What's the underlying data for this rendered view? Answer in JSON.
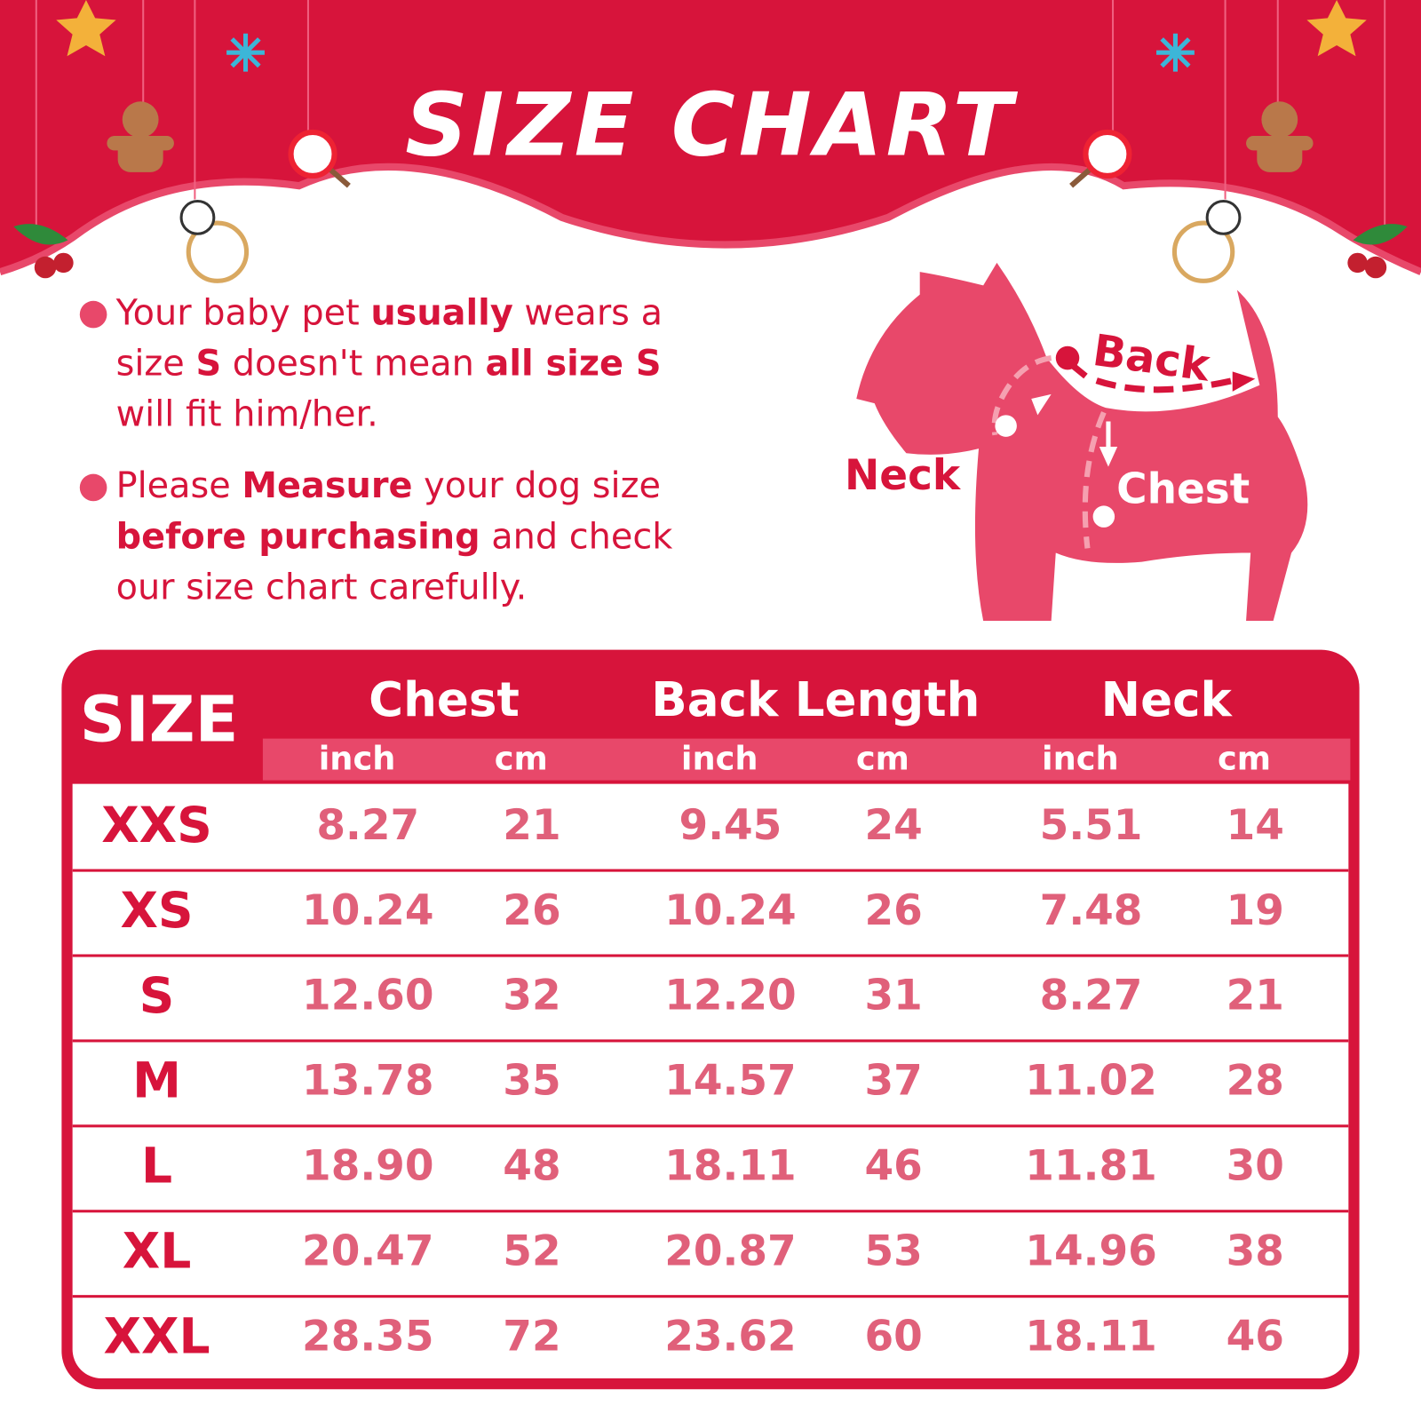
{
  "title": "SIZE CHART",
  "colors": {
    "primary": "#d7143b",
    "pink": "#e8486a",
    "value": "#e0607a"
  },
  "notes": [
    {
      "parts": [
        [
          "Your baby pet ",
          false
        ],
        [
          "usually",
          true
        ],
        [
          " wears a",
          false
        ],
        [
          "|",
          false
        ],
        [
          "size ",
          false
        ],
        [
          "S",
          true
        ],
        [
          " doesn't mean ",
          false
        ],
        [
          "all size S",
          true
        ],
        [
          "|",
          false
        ],
        [
          "will fit him/her.",
          false
        ]
      ]
    },
    {
      "parts": [
        [
          "Please ",
          false
        ],
        [
          "Measure",
          true
        ],
        [
          " your dog size",
          false
        ],
        [
          "|",
          false
        ],
        [
          "before purchasing",
          true
        ],
        [
          " and check",
          false
        ],
        [
          "|",
          false
        ],
        [
          "our size chart carefully.",
          false
        ]
      ]
    }
  ],
  "diagram": {
    "back": "Back",
    "neck": "Neck",
    "chest": "Chest"
  },
  "table": {
    "size_header": "SIZE",
    "groups": [
      "Chest",
      "Back Length",
      "Neck"
    ],
    "units": [
      "inch",
      "cm",
      "inch",
      "cm",
      "inch",
      "cm"
    ],
    "rows": [
      [
        "XXS",
        "8.27",
        "21",
        "9.45",
        "24",
        "5.51",
        "14"
      ],
      [
        "XS",
        "10.24",
        "26",
        "10.24",
        "26",
        "7.48",
        "19"
      ],
      [
        "S",
        "12.60",
        "32",
        "12.20",
        "31",
        "8.27",
        "21"
      ],
      [
        "M",
        "13.78",
        "35",
        "14.57",
        "37",
        "11.02",
        "28"
      ],
      [
        "L",
        "18.90",
        "48",
        "18.11",
        "46",
        "11.81",
        "30"
      ],
      [
        "XL",
        "20.47",
        "52",
        "20.87",
        "53",
        "14.96",
        "38"
      ],
      [
        "XXL",
        "28.35",
        "72",
        "23.62",
        "60",
        "18.11",
        "46"
      ]
    ]
  }
}
